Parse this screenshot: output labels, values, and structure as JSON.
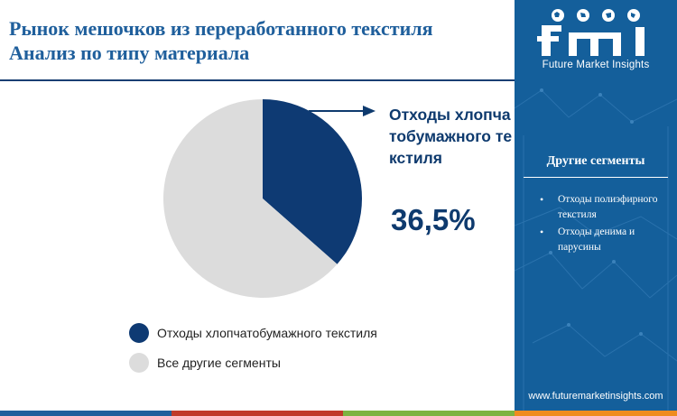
{
  "header": {
    "title_line1": "Рынок мешочков из переработанного текстиля",
    "title_line2": "Анализ по типу материала"
  },
  "chart_data": {
    "type": "pie",
    "slices": [
      {
        "label": "Отходы хлопчатобумажного текстиля",
        "value": 36.5,
        "color": "#0e3a73"
      },
      {
        "label": "Все другие сегменты",
        "value": 63.5,
        "color": "#dcdcdc"
      }
    ],
    "legend": [
      "Отходы хлопчатобумажного текстиля",
      "Все другие сегменты"
    ],
    "legend_position": "bottom"
  },
  "callout": {
    "label": "Отходы хлопчатобумажного текстиля",
    "value": "36,5%"
  },
  "panel": {
    "logo_letters": "fmi",
    "logo_caption": "Future Market Insights",
    "heading": "Другие сегменты",
    "items": [
      "Отходы полиэфирного текстиля",
      "Отходы денима и парусины"
    ],
    "url": "www.futuremarketinsights.com",
    "background_color": "#145f9b"
  },
  "stripe_colors": [
    "#1f5f9c",
    "#c0392b",
    "#7cb342",
    "#ef8c1f"
  ]
}
